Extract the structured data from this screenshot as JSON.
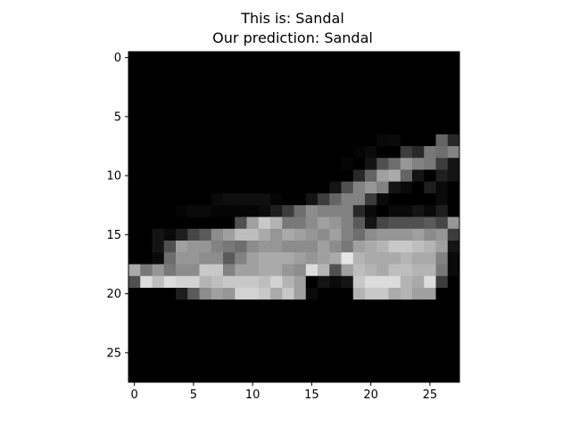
{
  "chart_data": {
    "type": "heatmap",
    "title_line1": "This is: Sandal",
    "title_line2": "Our prediction: Sandal",
    "xlabel": "",
    "ylabel": "",
    "colormap": "gray",
    "grid": false,
    "rows": 28,
    "cols": 28,
    "x_ticks": [
      0,
      5,
      10,
      15,
      20,
      25
    ],
    "y_ticks": [
      0,
      5,
      10,
      15,
      20,
      25
    ],
    "values": [
      [
        0,
        0,
        0,
        0,
        0,
        0,
        0,
        0,
        0,
        0,
        0,
        0,
        0,
        0,
        0,
        0,
        0,
        0,
        0,
        0,
        0,
        0,
        0,
        0,
        0,
        0,
        0,
        0
      ],
      [
        0,
        0,
        0,
        0,
        0,
        0,
        0,
        0,
        0,
        0,
        0,
        0,
        0,
        0,
        0,
        0,
        0,
        0,
        0,
        0,
        0,
        0,
        0,
        0,
        0,
        0,
        0,
        0
      ],
      [
        0,
        0,
        0,
        0,
        0,
        0,
        0,
        0,
        0,
        0,
        0,
        0,
        0,
        0,
        0,
        0,
        0,
        0,
        0,
        0,
        0,
        0,
        0,
        0,
        0,
        0,
        0,
        0
      ],
      [
        0,
        0,
        0,
        0,
        0,
        0,
        0,
        0,
        0,
        0,
        0,
        0,
        0,
        0,
        0,
        0,
        0,
        0,
        0,
        0,
        0,
        0,
        0,
        0,
        0,
        0,
        0,
        0
      ],
      [
        0,
        0,
        0,
        0,
        0,
        0,
        0,
        0,
        0,
        0,
        0,
        0,
        0,
        0,
        0,
        0,
        0,
        0,
        0,
        0,
        0,
        0,
        0,
        0,
        0,
        0,
        0,
        0
      ],
      [
        0,
        0,
        0,
        0,
        0,
        0,
        0,
        0,
        0,
        0,
        0,
        0,
        0,
        0,
        0,
        0,
        0,
        0,
        0,
        0,
        0,
        0,
        0,
        0,
        0,
        0,
        0,
        0
      ],
      [
        0,
        0,
        0,
        0,
        0,
        0,
        0,
        0,
        0,
        0,
        0,
        0,
        0,
        0,
        0,
        0,
        0,
        0,
        0,
        0,
        0,
        0,
        0,
        0,
        0,
        0,
        0,
        0
      ],
      [
        0,
        0,
        0,
        0,
        0,
        0,
        0,
        0,
        0,
        0,
        0,
        0,
        0,
        0,
        0,
        0,
        0,
        0,
        0,
        0,
        0,
        8,
        10,
        0,
        0,
        0,
        100,
        40
      ],
      [
        0,
        0,
        0,
        0,
        0,
        0,
        0,
        0,
        0,
        0,
        0,
        0,
        0,
        0,
        0,
        0,
        0,
        0,
        0,
        5,
        10,
        0,
        0,
        60,
        40,
        120,
        110,
        130
      ],
      [
        0,
        0,
        0,
        0,
        0,
        0,
        0,
        0,
        0,
        0,
        0,
        0,
        0,
        0,
        0,
        0,
        0,
        0,
        5,
        0,
        20,
        80,
        110,
        150,
        130,
        120,
        60,
        20
      ],
      [
        0,
        0,
        0,
        0,
        0,
        0,
        0,
        0,
        0,
        0,
        0,
        0,
        0,
        0,
        0,
        0,
        0,
        0,
        0,
        40,
        100,
        160,
        170,
        100,
        20,
        0,
        30,
        20
      ],
      [
        0,
        0,
        0,
        0,
        0,
        0,
        0,
        0,
        0,
        0,
        0,
        0,
        0,
        0,
        0,
        0,
        0,
        20,
        80,
        130,
        150,
        130,
        20,
        10,
        0,
        30,
        10,
        0
      ],
      [
        0,
        0,
        0,
        0,
        0,
        0,
        0,
        10,
        15,
        15,
        15,
        15,
        5,
        0,
        0,
        20,
        60,
        100,
        130,
        130,
        60,
        10,
        0,
        0,
        0,
        0,
        10,
        0
      ],
      [
        0,
        0,
        0,
        0,
        5,
        10,
        10,
        5,
        5,
        5,
        5,
        10,
        30,
        60,
        110,
        140,
        130,
        130,
        130,
        40,
        10,
        0,
        10,
        10,
        20,
        10,
        30,
        0
      ],
      [
        0,
        0,
        0,
        0,
        0,
        0,
        0,
        0,
        0,
        80,
        160,
        200,
        180,
        120,
        120,
        140,
        160,
        150,
        130,
        90,
        20,
        70,
        80,
        80,
        80,
        90,
        70,
        150
      ],
      [
        0,
        0,
        20,
        10,
        30,
        70,
        90,
        140,
        160,
        190,
        190,
        170,
        150,
        170,
        160,
        150,
        140,
        160,
        130,
        110,
        140,
        150,
        150,
        150,
        160,
        140,
        150,
        60
      ],
      [
        0,
        0,
        20,
        80,
        160,
        150,
        150,
        130,
        120,
        110,
        140,
        150,
        150,
        140,
        140,
        140,
        160,
        140,
        120,
        160,
        170,
        180,
        200,
        200,
        190,
        180,
        160,
        20
      ],
      [
        0,
        0,
        10,
        110,
        150,
        150,
        140,
        140,
        90,
        130,
        160,
        170,
        170,
        170,
        160,
        150,
        160,
        170,
        230,
        180,
        170,
        170,
        170,
        180,
        170,
        170,
        130,
        10
      ],
      [
        170,
        120,
        150,
        120,
        140,
        140,
        200,
        200,
        130,
        160,
        160,
        170,
        170,
        150,
        140,
        220,
        180,
        80,
        160,
        190,
        180,
        170,
        190,
        190,
        180,
        180,
        120,
        10
      ],
      [
        80,
        220,
        190,
        220,
        210,
        210,
        180,
        190,
        200,
        200,
        200,
        190,
        210,
        180,
        160,
        0,
        20,
        10,
        20,
        200,
        220,
        220,
        220,
        180,
        170,
        220,
        60,
        0
      ],
      [
        0,
        0,
        0,
        0,
        30,
        90,
        140,
        160,
        150,
        210,
        210,
        200,
        170,
        200,
        160,
        10,
        0,
        0,
        0,
        180,
        200,
        200,
        170,
        180,
        160,
        160,
        0,
        0
      ],
      [
        0,
        0,
        0,
        0,
        0,
        0,
        0,
        0,
        0,
        0,
        0,
        0,
        0,
        0,
        0,
        0,
        0,
        0,
        0,
        0,
        0,
        0,
        0,
        0,
        0,
        0,
        0,
        0
      ],
      [
        0,
        0,
        0,
        0,
        0,
        0,
        0,
        0,
        0,
        0,
        0,
        0,
        0,
        0,
        0,
        0,
        0,
        0,
        0,
        0,
        0,
        0,
        0,
        0,
        0,
        0,
        0,
        0
      ],
      [
        0,
        0,
        0,
        0,
        0,
        0,
        0,
        0,
        0,
        0,
        0,
        0,
        0,
        0,
        0,
        0,
        0,
        0,
        0,
        0,
        0,
        0,
        0,
        0,
        0,
        0,
        0,
        0
      ],
      [
        0,
        0,
        0,
        0,
        0,
        0,
        0,
        0,
        0,
        0,
        0,
        0,
        0,
        0,
        0,
        0,
        0,
        0,
        0,
        0,
        0,
        0,
        0,
        0,
        0,
        0,
        0,
        0
      ],
      [
        0,
        0,
        0,
        0,
        0,
        0,
        0,
        0,
        0,
        0,
        0,
        0,
        0,
        0,
        0,
        0,
        0,
        0,
        0,
        0,
        0,
        0,
        0,
        0,
        0,
        0,
        0,
        0
      ],
      [
        0,
        0,
        0,
        0,
        0,
        0,
        0,
        0,
        0,
        0,
        0,
        0,
        0,
        0,
        0,
        0,
        0,
        0,
        0,
        0,
        0,
        0,
        0,
        0,
        0,
        0,
        0,
        0
      ],
      [
        0,
        0,
        0,
        0,
        0,
        0,
        0,
        0,
        0,
        0,
        0,
        0,
        0,
        0,
        0,
        0,
        0,
        0,
        0,
        0,
        0,
        0,
        0,
        0,
        0,
        0,
        0,
        0
      ]
    ]
  }
}
